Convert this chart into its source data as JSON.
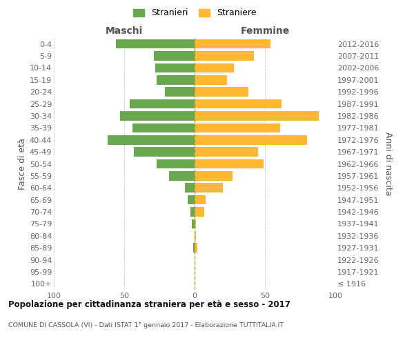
{
  "age_groups": [
    "100+",
    "95-99",
    "90-94",
    "85-89",
    "80-84",
    "75-79",
    "70-74",
    "65-69",
    "60-64",
    "55-59",
    "50-54",
    "45-49",
    "40-44",
    "35-39",
    "30-34",
    "25-29",
    "20-24",
    "15-19",
    "10-14",
    "5-9",
    "0-4"
  ],
  "birth_years": [
    "≤ 1916",
    "1917-1921",
    "1922-1926",
    "1927-1931",
    "1932-1936",
    "1937-1941",
    "1942-1946",
    "1947-1951",
    "1952-1956",
    "1957-1961",
    "1962-1966",
    "1967-1971",
    "1972-1976",
    "1977-1981",
    "1982-1986",
    "1987-1991",
    "1992-1996",
    "1997-2001",
    "2002-2006",
    "2007-2011",
    "2012-2016"
  ],
  "maschi": [
    0,
    0,
    0,
    1,
    0,
    2,
    3,
    5,
    7,
    18,
    27,
    43,
    62,
    44,
    53,
    46,
    21,
    27,
    28,
    29,
    56
  ],
  "femmine": [
    0,
    0,
    0,
    2,
    1,
    1,
    7,
    8,
    20,
    27,
    49,
    45,
    80,
    61,
    88,
    62,
    38,
    23,
    28,
    42,
    54
  ],
  "color_maschi": "#6aa84f",
  "color_femmine": "#ffb833",
  "title": "Popolazione per cittadinanza straniera per età e sesso - 2017",
  "subtitle": "COMUNE DI CASSOLA (VI) - Dati ISTAT 1° gennaio 2017 - Elaborazione TUTTITALIA.IT",
  "label_maschi": "Maschi",
  "label_femmine": "Femmine",
  "ylabel_left": "Fasce di età",
  "ylabel_right": "Anni di nascita",
  "legend_maschi": "Stranieri",
  "legend_femmine": "Straniere",
  "xlim": 100
}
